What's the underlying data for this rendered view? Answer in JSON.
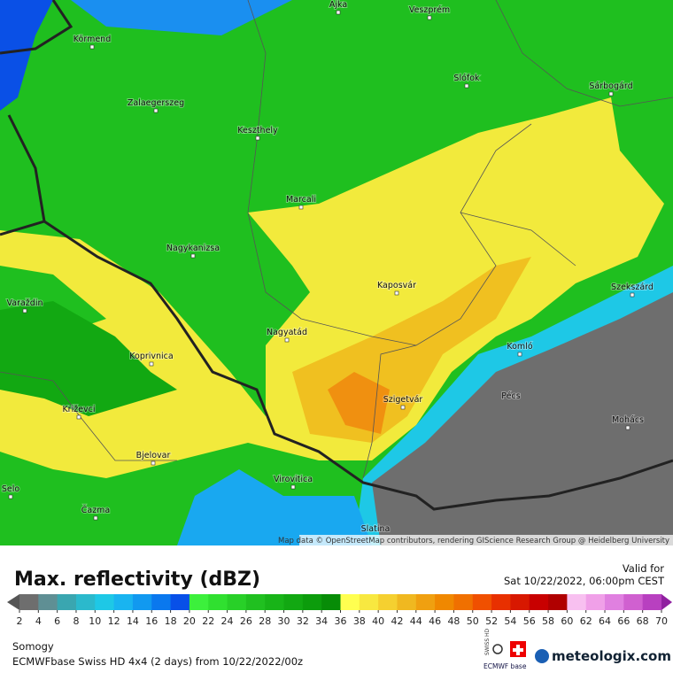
{
  "map": {
    "cities": [
      "Ajka",
      "Veszprém",
      "Körmend",
      "Slófok",
      "Sárbogárd",
      "Zalaegerszeg",
      "Keszthely",
      "Marcali",
      "Nagykanizsa",
      "Kaposvár",
      "Szekszárd",
      "Varaždin",
      "Nagyatád",
      "Komló",
      "Koprivnica",
      "Pécs",
      "Szigetvár",
      "Mohács",
      "Križevci",
      "Bjelovar",
      "Virovitica",
      "Selo",
      "Čazma",
      "Slatina"
    ],
    "attribution": "Map data © OpenStreetMap contributors, rendering GIScience Research Group @ Heidelberg University"
  },
  "header": {
    "title": "Max. reflectivity (dBZ)",
    "valid_label": "Valid for",
    "valid_time": "Sat 10/22/2022, 06:00pm CEST"
  },
  "legend": {
    "ticks": [
      2,
      4,
      6,
      8,
      10,
      12,
      14,
      16,
      18,
      20,
      22,
      24,
      26,
      28,
      30,
      32,
      34,
      36,
      38,
      40,
      42,
      44,
      46,
      48,
      50,
      52,
      54,
      56,
      58,
      60,
      62,
      64,
      66,
      68,
      70
    ],
    "colors": [
      "#6e6e6e",
      "#5f8f94",
      "#3aa6b0",
      "#2bb9cc",
      "#1ec8e6",
      "#19b4f0",
      "#1199f0",
      "#0a78ee",
      "#0850e8",
      "#3cf03c",
      "#30e030",
      "#28d028",
      "#20c020",
      "#18b418",
      "#12a812",
      "#0c9c0c",
      "#078c07",
      "#ffff50",
      "#f8e840",
      "#f5d030",
      "#f0b820",
      "#f0a010",
      "#f08800",
      "#f07000",
      "#f05000",
      "#e83000",
      "#d81800",
      "#c80000",
      "#b00000",
      "#f8c0f0",
      "#f0a0e8",
      "#e080e0",
      "#d060d0",
      "#b840c0"
    ],
    "under_color": "#555555",
    "over_color": "#9020a0"
  },
  "footer": {
    "region": "Somogy",
    "model": "ECMWFbase Swiss HD 4x4 (2 days) from 10/22/2022/00z",
    "swiss": "SWISS HD",
    "ecmwf": "ECMWF base",
    "brand": "meteologix.com"
  }
}
